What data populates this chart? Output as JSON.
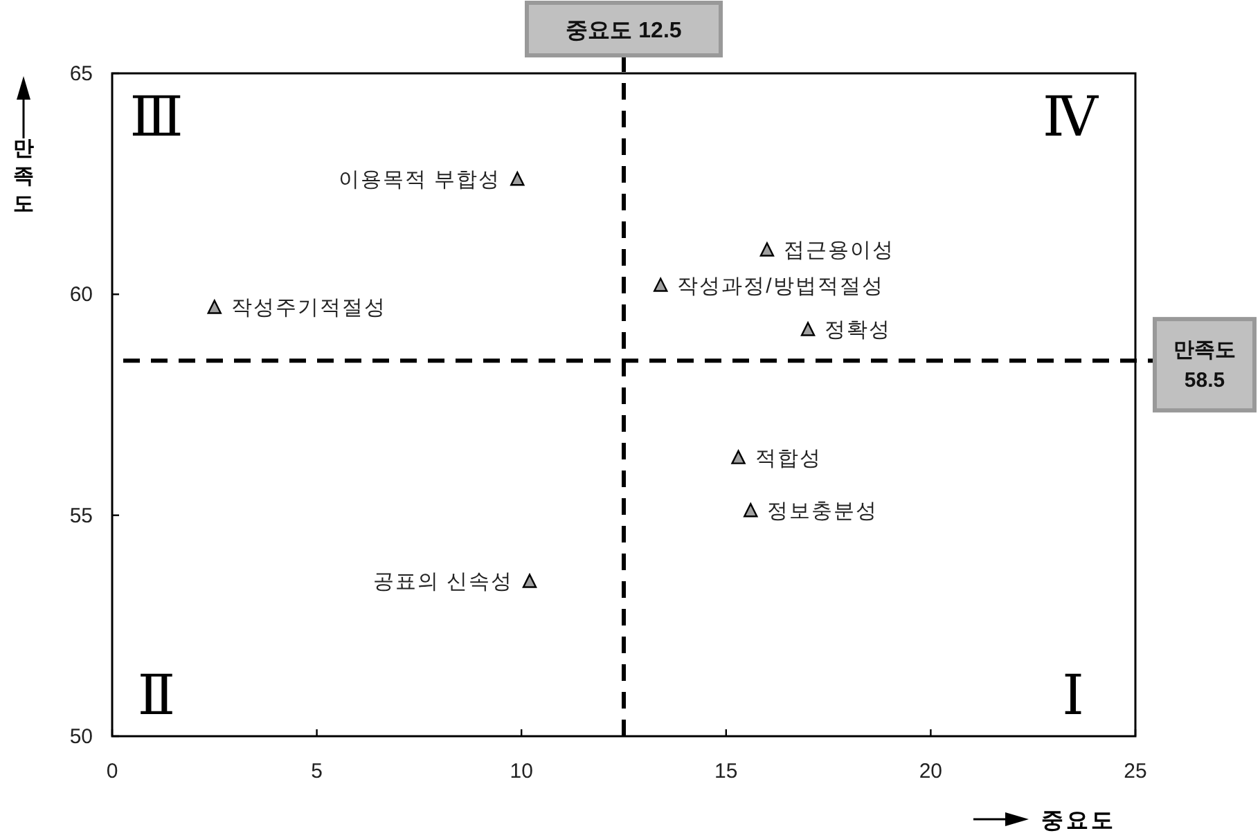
{
  "chart_data": {
    "type": "scatter",
    "xlabel": "중요도",
    "ylabel": "만족도",
    "xlim": [
      0,
      25
    ],
    "ylim": [
      50,
      65
    ],
    "xticks": [
      0,
      5,
      10,
      15,
      20,
      25
    ],
    "yticks": [
      50,
      55,
      60,
      65
    ],
    "grid": false,
    "marker": "triangle",
    "series": [
      {
        "color": "#a0a0a0",
        "x": [
          9.9,
          2.5,
          13.4,
          16.0,
          17.0,
          15.3,
          15.6,
          10.2
        ],
        "values": [
          62.6,
          59.7,
          60.2,
          61.0,
          59.2,
          56.3,
          55.1,
          53.5
        ]
      }
    ],
    "ref_lines": [
      {
        "axis": "x",
        "value": 12.5,
        "label": "중요도 12.5",
        "line_style": "dashed",
        "color": "#000000"
      },
      {
        "axis": "y",
        "value": 58.5,
        "label": "만족도 58.5",
        "line_style": "dashed",
        "color": "#000000"
      }
    ],
    "annotations": [
      {
        "text": "이용목적 부합성",
        "x": 9.9,
        "y": 62.6
      },
      {
        "text": "작성주기적절성",
        "x": 2.5,
        "y": 59.7
      },
      {
        "text": "작성과정/방법적절성",
        "x": 13.4,
        "y": 60.2
      },
      {
        "text": "접근용이성",
        "x": 16.0,
        "y": 61.0
      },
      {
        "text": "정확성",
        "x": 17.0,
        "y": 59.2
      },
      {
        "text": "적합성",
        "x": 15.3,
        "y": 56.3
      },
      {
        "text": "정보충분성",
        "x": 15.6,
        "y": 55.1
      },
      {
        "text": "공표의 신속성",
        "x": 10.2,
        "y": 53.5
      },
      "Ⅲ",
      "Ⅳ",
      "Ⅱ",
      "Ⅰ"
    ]
  }
}
